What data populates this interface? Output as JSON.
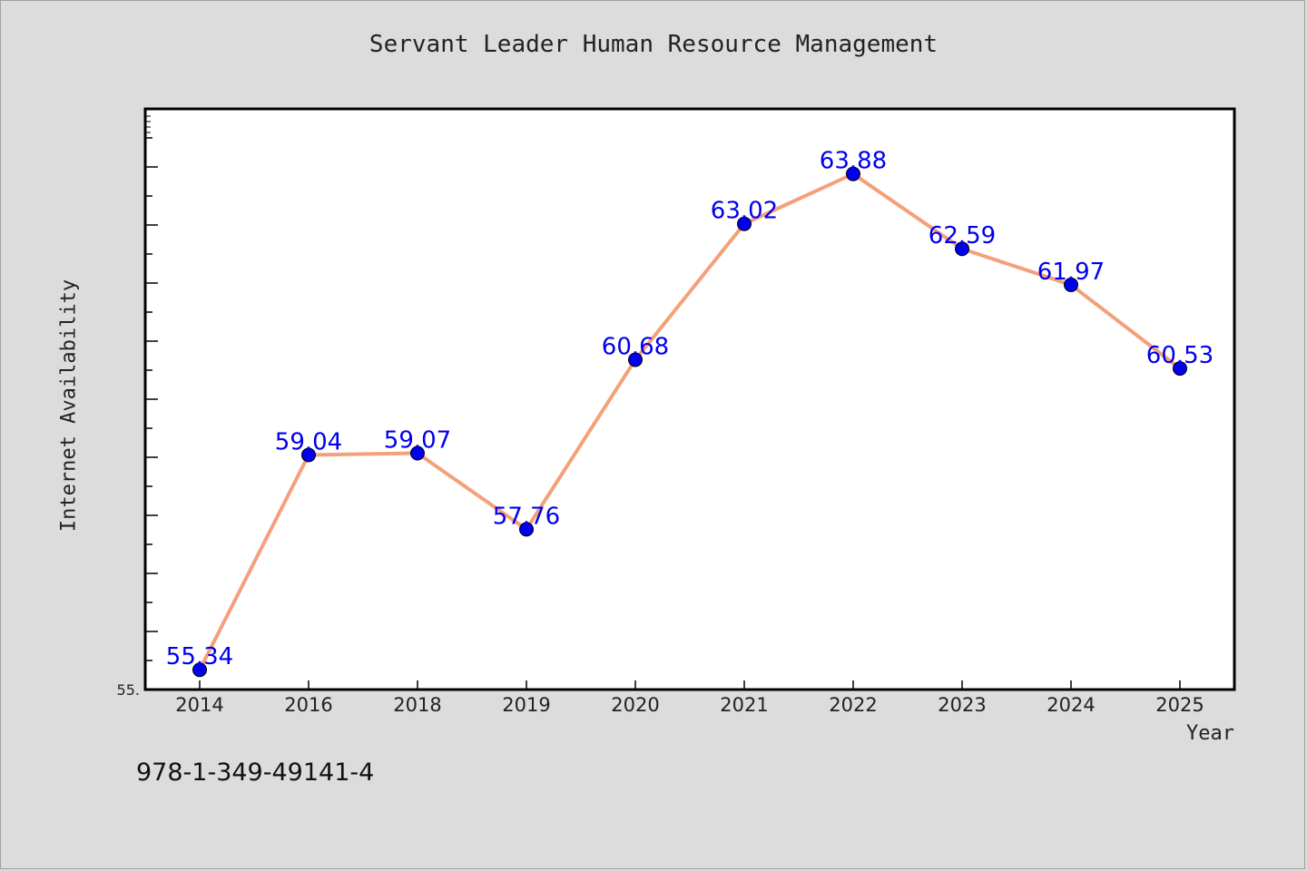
{
  "figure": {
    "background": "#dcdcdc",
    "footer_code": "978-1-349-49141-4"
  },
  "chart_data": {
    "type": "line",
    "title": "Servant Leader Human Resource Management",
    "xlabel": "Year",
    "ylabel": "Internet Availability",
    "categories": [
      "2014",
      "2016",
      "2018",
      "2019",
      "2020",
      "2021",
      "2022",
      "2023",
      "2024",
      "2025"
    ],
    "series": [
      {
        "values": [
          55.34,
          59.04,
          59.07,
          57.76,
          60.68,
          63.02,
          63.88,
          62.59,
          61.97,
          60.53
        ],
        "labels": [
          "55.34",
          "59.04",
          "59.07",
          "57.76",
          "60.68",
          "63.02",
          "63.88",
          "62.59",
          "61.97",
          "60.53"
        ],
        "line_color": "#f4a07a",
        "marker_color": "#0000ee"
      }
    ],
    "ylim": [
      55.0,
      65.0
    ],
    "y_min_label": "55.",
    "grid": false,
    "legend": "none"
  }
}
